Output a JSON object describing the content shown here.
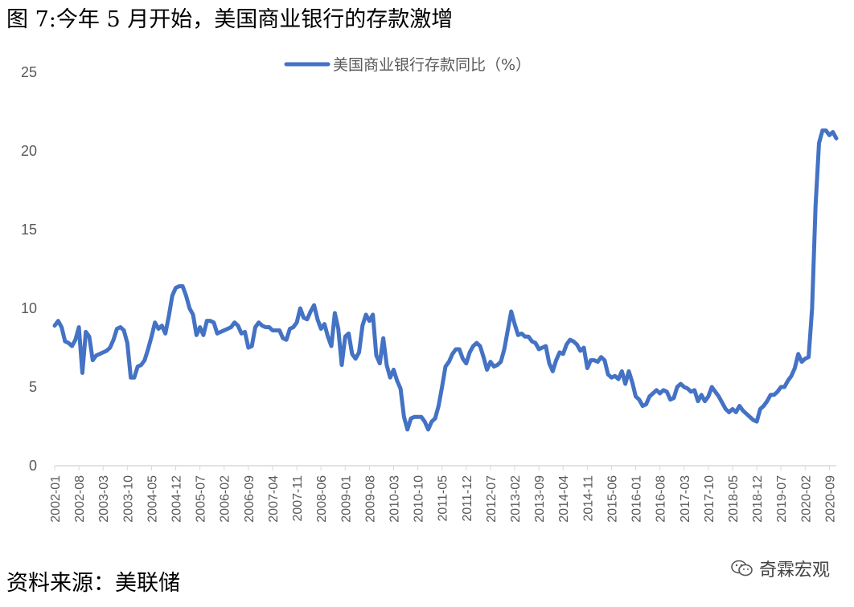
{
  "title": "图 7:今年 5 月开始，美国商业银行的存款激增",
  "source": "资料来源：美联储",
  "watermark": "奇霖宏观",
  "watermark_icon": "wechat-icon",
  "colors": {
    "series": "#4472C4",
    "axis": "#D9D9D9",
    "text": "#595959"
  },
  "chart_data": {
    "type": "line",
    "legend_position": "top-center",
    "grid": false,
    "ylim": [
      0,
      25
    ],
    "yticks": [
      0,
      5,
      10,
      15,
      20,
      25
    ],
    "x_tick_labels": [
      "2002-01",
      "2002-08",
      "2003-03",
      "2003-10",
      "2004-05",
      "2004-12",
      "2005-07",
      "2006-02",
      "2006-09",
      "2007-04",
      "2007-11",
      "2008-06",
      "2009-01",
      "2009-08",
      "2010-03",
      "2010-10",
      "2011-05",
      "2011-12",
      "2012-07",
      "2013-02",
      "2013-09",
      "2014-04",
      "2014-11",
      "2015-06",
      "2016-01",
      "2016-08",
      "2017-03",
      "2017-10",
      "2018-05",
      "2018-12",
      "2019-07",
      "2020-02",
      "2020-09"
    ],
    "x_start": "2002-01",
    "series": [
      {
        "name": "美国商业银行存款同比（%）",
        "points": [
          [
            "2002-01",
            8.9
          ],
          [
            "2002-02",
            9.2
          ],
          [
            "2002-03",
            8.8
          ],
          [
            "2002-04",
            7.9
          ],
          [
            "2002-05",
            7.8
          ],
          [
            "2002-06",
            7.6
          ],
          [
            "2002-07",
            8.0
          ],
          [
            "2002-08",
            8.8
          ],
          [
            "2002-09",
            5.9
          ],
          [
            "2002-10",
            8.5
          ],
          [
            "2002-11",
            8.2
          ],
          [
            "2002-12",
            6.7
          ],
          [
            "2003-01",
            7.0
          ],
          [
            "2003-02",
            7.1
          ],
          [
            "2003-03",
            7.2
          ],
          [
            "2003-04",
            7.3
          ],
          [
            "2003-05",
            7.5
          ],
          [
            "2003-06",
            8.0
          ],
          [
            "2003-07",
            8.7
          ],
          [
            "2003-08",
            8.8
          ],
          [
            "2003-09",
            8.6
          ],
          [
            "2003-10",
            7.8
          ],
          [
            "2003-11",
            5.6
          ],
          [
            "2003-12",
            5.6
          ],
          [
            "2004-01",
            6.3
          ],
          [
            "2004-02",
            6.4
          ],
          [
            "2004-03",
            6.7
          ],
          [
            "2004-04",
            7.4
          ],
          [
            "2004-05",
            8.2
          ],
          [
            "2004-06",
            9.1
          ],
          [
            "2004-07",
            8.7
          ],
          [
            "2004-08",
            8.9
          ],
          [
            "2004-09",
            8.4
          ],
          [
            "2004-10",
            9.5
          ],
          [
            "2004-11",
            10.8
          ],
          [
            "2004-12",
            11.3
          ],
          [
            "2005-01",
            11.4
          ],
          [
            "2005-02",
            11.4
          ],
          [
            "2005-03",
            10.8
          ],
          [
            "2005-04",
            10.0
          ],
          [
            "2005-05",
            9.6
          ],
          [
            "2005-06",
            8.3
          ],
          [
            "2005-07",
            8.8
          ],
          [
            "2005-08",
            8.3
          ],
          [
            "2005-09",
            9.2
          ],
          [
            "2005-10",
            9.2
          ],
          [
            "2005-11",
            9.1
          ],
          [
            "2005-12",
            8.4
          ],
          [
            "2006-01",
            8.5
          ],
          [
            "2006-02",
            8.6
          ],
          [
            "2006-03",
            8.7
          ],
          [
            "2006-04",
            8.8
          ],
          [
            "2006-05",
            9.1
          ],
          [
            "2006-06",
            8.9
          ],
          [
            "2006-07",
            8.4
          ],
          [
            "2006-08",
            8.5
          ],
          [
            "2006-09",
            7.5
          ],
          [
            "2006-10",
            7.6
          ],
          [
            "2006-11",
            8.8
          ],
          [
            "2006-12",
            9.1
          ],
          [
            "2007-01",
            8.9
          ],
          [
            "2007-02",
            8.8
          ],
          [
            "2007-03",
            8.8
          ],
          [
            "2007-04",
            8.6
          ],
          [
            "2007-05",
            8.6
          ],
          [
            "2007-06",
            8.6
          ],
          [
            "2007-07",
            8.1
          ],
          [
            "2007-08",
            8.0
          ],
          [
            "2007-09",
            8.7
          ],
          [
            "2007-10",
            8.8
          ],
          [
            "2007-11",
            9.1
          ],
          [
            "2007-12",
            10.0
          ],
          [
            "2008-01",
            9.4
          ],
          [
            "2008-02",
            9.3
          ],
          [
            "2008-03",
            9.8
          ],
          [
            "2008-04",
            10.2
          ],
          [
            "2008-05",
            9.3
          ],
          [
            "2008-06",
            8.7
          ],
          [
            "2008-07",
            9.0
          ],
          [
            "2008-08",
            8.2
          ],
          [
            "2008-09",
            7.6
          ],
          [
            "2008-10",
            9.7
          ],
          [
            "2008-11",
            8.7
          ],
          [
            "2008-12",
            6.4
          ],
          [
            "2009-01",
            8.2
          ],
          [
            "2009-02",
            8.4
          ],
          [
            "2009-03",
            7.1
          ],
          [
            "2009-04",
            6.8
          ],
          [
            "2009-05",
            7.2
          ],
          [
            "2009-06",
            8.9
          ],
          [
            "2009-07",
            9.6
          ],
          [
            "2009-08",
            9.2
          ],
          [
            "2009-09",
            9.6
          ],
          [
            "2009-10",
            7.0
          ],
          [
            "2009-11",
            6.5
          ],
          [
            "2009-12",
            8.1
          ],
          [
            "2010-01",
            6.4
          ],
          [
            "2010-02",
            5.6
          ],
          [
            "2010-03",
            6.1
          ],
          [
            "2010-04",
            5.4
          ],
          [
            "2010-05",
            4.9
          ],
          [
            "2010-06",
            3.1
          ],
          [
            "2010-07",
            2.3
          ],
          [
            "2010-08",
            3.0
          ],
          [
            "2010-09",
            3.1
          ],
          [
            "2010-10",
            3.1
          ],
          [
            "2010-11",
            3.1
          ],
          [
            "2010-12",
            2.8
          ],
          [
            "2011-01",
            2.3
          ],
          [
            "2011-02",
            2.8
          ],
          [
            "2011-03",
            3.0
          ],
          [
            "2011-04",
            3.8
          ],
          [
            "2011-05",
            5.0
          ],
          [
            "2011-06",
            6.3
          ],
          [
            "2011-07",
            6.6
          ],
          [
            "2011-08",
            7.1
          ],
          [
            "2011-09",
            7.4
          ],
          [
            "2011-10",
            7.4
          ],
          [
            "2011-11",
            6.8
          ],
          [
            "2011-12",
            6.5
          ],
          [
            "2012-01",
            7.2
          ],
          [
            "2012-02",
            7.6
          ],
          [
            "2012-03",
            7.8
          ],
          [
            "2012-04",
            7.6
          ],
          [
            "2012-05",
            6.9
          ],
          [
            "2012-06",
            6.1
          ],
          [
            "2012-07",
            6.6
          ],
          [
            "2012-08",
            6.3
          ],
          [
            "2012-09",
            6.4
          ],
          [
            "2012-10",
            6.6
          ],
          [
            "2012-11",
            7.4
          ],
          [
            "2012-12",
            8.6
          ],
          [
            "2013-01",
            9.8
          ],
          [
            "2013-02",
            9.0
          ],
          [
            "2013-03",
            8.3
          ],
          [
            "2013-04",
            8.4
          ],
          [
            "2013-05",
            8.2
          ],
          [
            "2013-06",
            8.2
          ],
          [
            "2013-07",
            7.9
          ],
          [
            "2013-08",
            7.8
          ],
          [
            "2013-09",
            7.4
          ],
          [
            "2013-10",
            7.5
          ],
          [
            "2013-11",
            7.6
          ],
          [
            "2013-12",
            6.5
          ],
          [
            "2014-01",
            6.0
          ],
          [
            "2014-02",
            6.7
          ],
          [
            "2014-03",
            7.2
          ],
          [
            "2014-04",
            7.1
          ],
          [
            "2014-05",
            7.7
          ],
          [
            "2014-06",
            8.0
          ],
          [
            "2014-07",
            7.9
          ],
          [
            "2014-08",
            7.7
          ],
          [
            "2014-09",
            7.3
          ],
          [
            "2014-10",
            7.5
          ],
          [
            "2014-11",
            6.2
          ],
          [
            "2014-12",
            6.7
          ],
          [
            "2015-01",
            6.7
          ],
          [
            "2015-02",
            6.6
          ],
          [
            "2015-03",
            6.9
          ],
          [
            "2015-04",
            6.7
          ],
          [
            "2015-05",
            5.8
          ],
          [
            "2015-06",
            5.6
          ],
          [
            "2015-07",
            5.7
          ],
          [
            "2015-08",
            5.5
          ],
          [
            "2015-09",
            6.0
          ],
          [
            "2015-10",
            5.2
          ],
          [
            "2015-11",
            6.0
          ],
          [
            "2015-12",
            5.3
          ],
          [
            "2016-01",
            4.4
          ],
          [
            "2016-02",
            4.2
          ],
          [
            "2016-03",
            3.8
          ],
          [
            "2016-04",
            3.9
          ],
          [
            "2016-05",
            4.4
          ],
          [
            "2016-06",
            4.6
          ],
          [
            "2016-07",
            4.8
          ],
          [
            "2016-08",
            4.6
          ],
          [
            "2016-09",
            4.8
          ],
          [
            "2016-10",
            4.7
          ],
          [
            "2016-11",
            4.2
          ],
          [
            "2016-12",
            4.3
          ],
          [
            "2017-01",
            5.0
          ],
          [
            "2017-02",
            5.2
          ],
          [
            "2017-03",
            5.0
          ],
          [
            "2017-04",
            4.9
          ],
          [
            "2017-05",
            4.7
          ],
          [
            "2017-06",
            4.8
          ],
          [
            "2017-07",
            4.1
          ],
          [
            "2017-08",
            4.5
          ],
          [
            "2017-09",
            4.1
          ],
          [
            "2017-10",
            4.4
          ],
          [
            "2017-11",
            5.0
          ],
          [
            "2017-12",
            4.7
          ],
          [
            "2018-01",
            4.4
          ],
          [
            "2018-02",
            4.0
          ],
          [
            "2018-03",
            3.6
          ],
          [
            "2018-04",
            3.4
          ],
          [
            "2018-05",
            3.6
          ],
          [
            "2018-06",
            3.4
          ],
          [
            "2018-07",
            3.8
          ],
          [
            "2018-08",
            3.5
          ],
          [
            "2018-09",
            3.3
          ],
          [
            "2018-10",
            3.1
          ],
          [
            "2018-11",
            2.9
          ],
          [
            "2018-12",
            2.8
          ],
          [
            "2019-01",
            3.6
          ],
          [
            "2019-02",
            3.8
          ],
          [
            "2019-03",
            4.1
          ],
          [
            "2019-04",
            4.5
          ],
          [
            "2019-05",
            4.5
          ],
          [
            "2019-06",
            4.7
          ],
          [
            "2019-07",
            5.0
          ],
          [
            "2019-08",
            5.0
          ],
          [
            "2019-09",
            5.4
          ],
          [
            "2019-10",
            5.7
          ],
          [
            "2019-11",
            6.2
          ],
          [
            "2019-12",
            7.1
          ],
          [
            "2020-01",
            6.6
          ],
          [
            "2020-02",
            6.8
          ],
          [
            "2020-03",
            6.9
          ],
          [
            "2020-04",
            10.0
          ],
          [
            "2020-05",
            16.5
          ],
          [
            "2020-06",
            20.5
          ],
          [
            "2020-07",
            21.3
          ],
          [
            "2020-08",
            21.3
          ],
          [
            "2020-09",
            21.0
          ],
          [
            "2020-10",
            21.2
          ],
          [
            "2020-11",
            20.8
          ]
        ]
      }
    ]
  }
}
